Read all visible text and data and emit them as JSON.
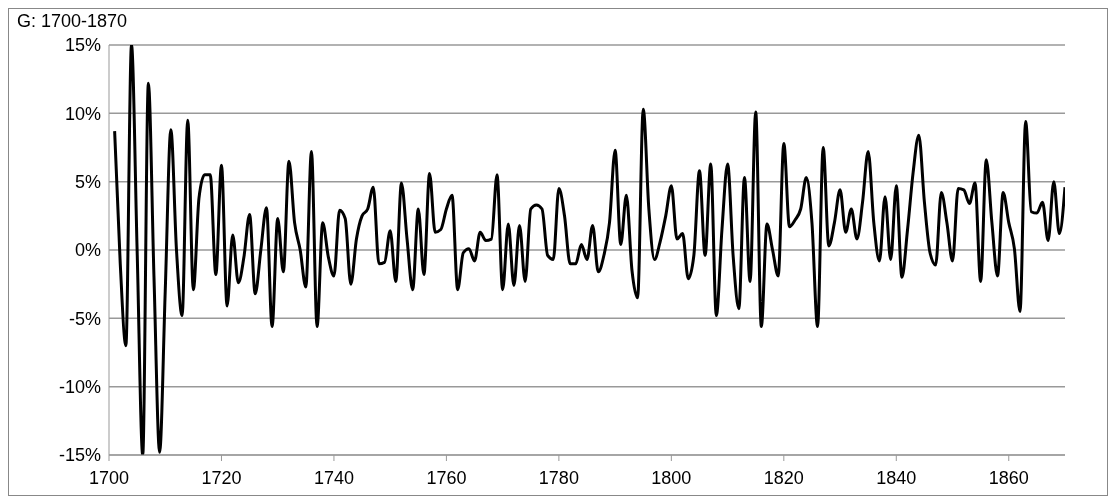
{
  "chart_data": {
    "type": "line",
    "title": "G: 1700-1870",
    "x": [
      1701,
      1702,
      1703,
      1704,
      1705,
      1706,
      1707,
      1708,
      1709,
      1710,
      1711,
      1712,
      1713,
      1714,
      1715,
      1716,
      1717,
      1718,
      1719,
      1720,
      1721,
      1722,
      1723,
      1724,
      1725,
      1726,
      1727,
      1728,
      1729,
      1730,
      1731,
      1732,
      1733,
      1734,
      1735,
      1736,
      1737,
      1738,
      1739,
      1740,
      1741,
      1742,
      1743,
      1744,
      1745,
      1746,
      1747,
      1748,
      1749,
      1750,
      1751,
      1752,
      1753,
      1754,
      1755,
      1756,
      1757,
      1758,
      1759,
      1760,
      1761,
      1762,
      1763,
      1764,
      1765,
      1766,
      1767,
      1768,
      1769,
      1770,
      1771,
      1772,
      1773,
      1774,
      1775,
      1776,
      1777,
      1778,
      1779,
      1780,
      1781,
      1782,
      1783,
      1784,
      1785,
      1786,
      1787,
      1788,
      1789,
      1790,
      1791,
      1792,
      1793,
      1794,
      1795,
      1796,
      1797,
      1798,
      1799,
      1800,
      1801,
      1802,
      1803,
      1804,
      1805,
      1806,
      1807,
      1808,
      1809,
      1810,
      1811,
      1812,
      1813,
      1814,
      1815,
      1816,
      1817,
      1818,
      1819,
      1820,
      1821,
      1822,
      1823,
      1824,
      1825,
      1826,
      1827,
      1828,
      1829,
      1830,
      1831,
      1832,
      1833,
      1834,
      1835,
      1836,
      1837,
      1838,
      1839,
      1840,
      1841,
      1842,
      1843,
      1844,
      1845,
      1846,
      1847,
      1848,
      1849,
      1850,
      1851,
      1852,
      1853,
      1854,
      1855,
      1856,
      1857,
      1858,
      1859,
      1860,
      1861,
      1862,
      1863,
      1864,
      1865,
      1866,
      1867,
      1868,
      1869,
      1870
    ],
    "values": [
      8.7,
      -1,
      -7,
      15,
      0,
      -15,
      12.2,
      -2,
      -14.8,
      -3,
      8.8,
      0,
      -4.8,
      9.5,
      -2.9,
      3.8,
      5.5,
      5.5,
      -1.8,
      6.2,
      -4.1,
      1.1,
      -2.4,
      -0.5,
      2.6,
      -3.2,
      0,
      3.1,
      -5.6,
      2.3,
      -1.6,
      6.5,
      2,
      0,
      -2.7,
      7.2,
      -5.6,
      2,
      -0.5,
      -1.9,
      2.9,
      2.3,
      -2.5,
      0.8,
      2.5,
      3,
      4.6,
      -1,
      -0.9,
      1.4,
      -2.3,
      4.9,
      0.8,
      -2.9,
      3,
      -1.8,
      5.6,
      1.3,
      1.5,
      3,
      4,
      -2.9,
      -0.2,
      0.1,
      -0.8,
      1.3,
      0.7,
      0.8,
      5.5,
      -2.9,
      1.9,
      -2.6,
      1.8,
      -2.3,
      3,
      3.3,
      3,
      -0.4,
      -0.7,
      4.5,
      2.5,
      -1,
      -1,
      0.4,
      -0.7,
      1.8,
      -1.6,
      -0.4,
      2,
      7.3,
      0.4,
      4,
      -1.5,
      -3.5,
      10.3,
      3,
      -0.7,
      0.6,
      2.5,
      4.7,
      0.8,
      1.2,
      -2.1,
      -0.4,
      5.8,
      -0.4,
      6.3,
      -4.8,
      1.5,
      6.3,
      -0.5,
      -4.3,
      5.3,
      -2.3,
      10.1,
      -5.6,
      1.9,
      0,
      -1.9,
      7.8,
      1.7,
      2.2,
      3,
      5.3,
      2,
      -5.6,
      7.5,
      0.3,
      2,
      4.4,
      1.3,
      3,
      0.8,
      3.5,
      7.2,
      2,
      -0.8,
      3.9,
      -0.7,
      4.7,
      -2,
      1.5,
      5.7,
      8.4,
      3.5,
      -0.2,
      -1.1,
      4.2,
      2,
      -0.8,
      4.5,
      4.4,
      3.4,
      4.9,
      -2.3,
      6.6,
      2,
      -1.9,
      4.2,
      2,
      0.1,
      -4.5,
      9.4,
      2.8,
      2.7,
      3.5,
      0.7,
      5,
      1.2,
      4.6
    ],
    "color": "#000000",
    "marker": "none",
    "line_style": "solid",
    "xlim": [
      1700,
      1870
    ],
    "xticks": [
      1700,
      1720,
      1740,
      1760,
      1780,
      1800,
      1820,
      1840,
      1860
    ],
    "ylim": [
      -15,
      15
    ],
    "yticks": [
      {
        "value": -15,
        "label": "-15%"
      },
      {
        "value": -10,
        "label": "-10%"
      },
      {
        "value": -5,
        "label": "-5%"
      },
      {
        "value": 0,
        "label": "0%"
      },
      {
        "value": 5,
        "label": "5%"
      },
      {
        "value": 10,
        "label": "10%"
      },
      {
        "value": 15,
        "label": "15%"
      }
    ],
    "grid": "y"
  }
}
